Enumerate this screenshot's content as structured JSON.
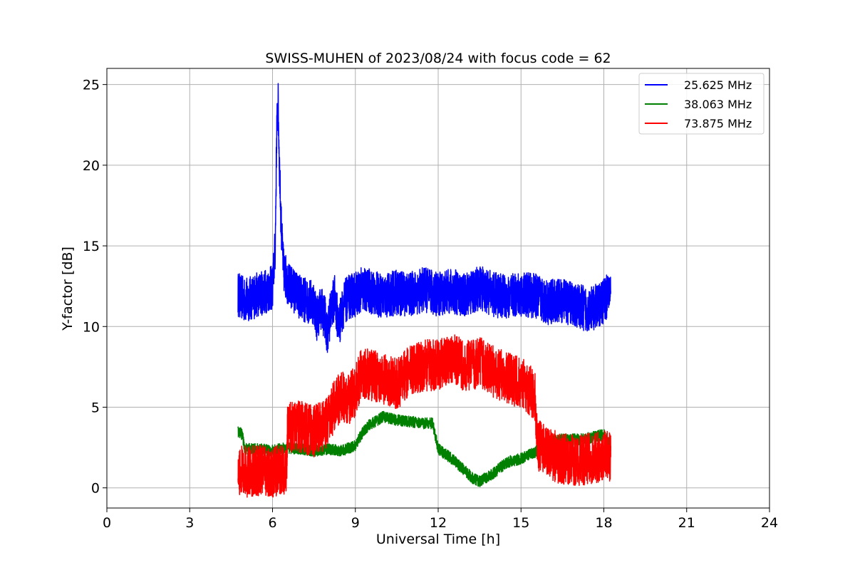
{
  "chart_data": {
    "type": "line",
    "title": "SWISS-MUHEN of 2023/08/24 with focus code = 62",
    "xlabel": "Universal Time [h]",
    "ylabel": "Y-factor [dB]",
    "xlim": [
      0,
      24
    ],
    "ylim": [
      -1.25,
      26
    ],
    "xticks": [
      0,
      3,
      6,
      9,
      12,
      15,
      18,
      21,
      24
    ],
    "xtick_labels": [
      "0",
      "3",
      "6",
      "9",
      "12",
      "15",
      "18",
      "21",
      "24"
    ],
    "yticks": [
      0,
      5,
      10,
      15,
      20,
      25
    ],
    "ytick_labels": [
      "0",
      "5",
      "10",
      "15",
      "20",
      "25"
    ],
    "grid": true,
    "legend_position": "top-right",
    "series": [
      {
        "name": "25.625 MHz",
        "color": "#0000ff",
        "x": [
          4.75,
          5.0,
          5.25,
          5.5,
          5.75,
          6.0,
          6.1,
          6.15,
          6.2,
          6.25,
          6.3,
          6.35,
          6.4,
          6.5,
          6.6,
          6.8,
          7.0,
          7.25,
          7.5,
          7.6,
          7.75,
          7.9,
          8.0,
          8.1,
          8.25,
          8.4,
          8.5,
          8.6,
          8.75,
          9.0,
          9.25,
          9.5,
          9.75,
          10.0,
          10.5,
          11.0,
          11.5,
          12.0,
          12.5,
          13.0,
          13.5,
          14.0,
          14.5,
          15.0,
          15.5,
          16.0,
          16.5,
          17.0,
          17.5,
          18.0,
          18.25
        ],
        "y": [
          12.0,
          11.6,
          11.8,
          12.0,
          12.2,
          12.4,
          15.0,
          22.0,
          24.0,
          20.0,
          17.0,
          15.0,
          13.5,
          13.0,
          12.5,
          12.2,
          11.8,
          11.6,
          11.5,
          10.5,
          11.2,
          10.5,
          9.5,
          11.0,
          11.8,
          10.0,
          10.8,
          11.5,
          11.8,
          12.0,
          12.3,
          12.2,
          12.0,
          11.9,
          12.1,
          12.0,
          12.3,
          12.0,
          12.2,
          11.9,
          12.4,
          12.0,
          11.8,
          12.0,
          11.9,
          11.5,
          11.6,
          11.3,
          11.0,
          11.6,
          12.2
        ]
      },
      {
        "name": "38.063 MHz",
        "color": "#008000",
        "x": [
          4.75,
          4.9,
          5.0,
          5.5,
          6.0,
          6.5,
          7.0,
          7.5,
          8.0,
          8.5,
          9.0,
          9.25,
          9.5,
          10.0,
          10.5,
          11.0,
          11.5,
          11.8,
          12.0,
          12.5,
          13.0,
          13.25,
          13.5,
          14.0,
          14.5,
          15.0,
          15.5,
          16.0,
          16.5,
          17.0,
          17.5,
          18.0,
          18.25
        ],
        "y": [
          3.5,
          3.3,
          2.4,
          2.4,
          2.3,
          2.5,
          2.4,
          2.3,
          2.4,
          2.3,
          2.6,
          3.4,
          3.9,
          4.4,
          4.2,
          4.1,
          4.0,
          4.0,
          2.4,
          1.8,
          1.0,
          0.6,
          0.4,
          0.9,
          1.6,
          1.8,
          2.2,
          2.9,
          3.0,
          3.0,
          3.1,
          3.3,
          2.6
        ]
      },
      {
        "name": "73.875 MHz",
        "color": "#ff0000",
        "x": [
          4.75,
          5.0,
          5.5,
          6.0,
          6.5,
          6.55,
          7.0,
          7.5,
          8.0,
          8.25,
          8.5,
          8.75,
          9.0,
          9.25,
          9.5,
          10.0,
          10.5,
          11.0,
          11.5,
          12.0,
          12.5,
          13.0,
          13.5,
          14.0,
          14.5,
          15.0,
          15.5,
          15.6,
          16.0,
          16.5,
          17.0,
          17.5,
          18.0,
          18.25
        ],
        "y": [
          1.1,
          1.0,
          1.1,
          1.0,
          1.1,
          3.7,
          3.8,
          3.5,
          4.0,
          5.2,
          5.7,
          5.5,
          6.0,
          7.2,
          7.0,
          6.8,
          6.4,
          7.3,
          7.6,
          7.6,
          8.0,
          7.5,
          7.8,
          7.2,
          6.8,
          6.5,
          5.8,
          2.7,
          2.1,
          1.8,
          1.7,
          1.8,
          2.0,
          1.9
        ]
      }
    ]
  }
}
